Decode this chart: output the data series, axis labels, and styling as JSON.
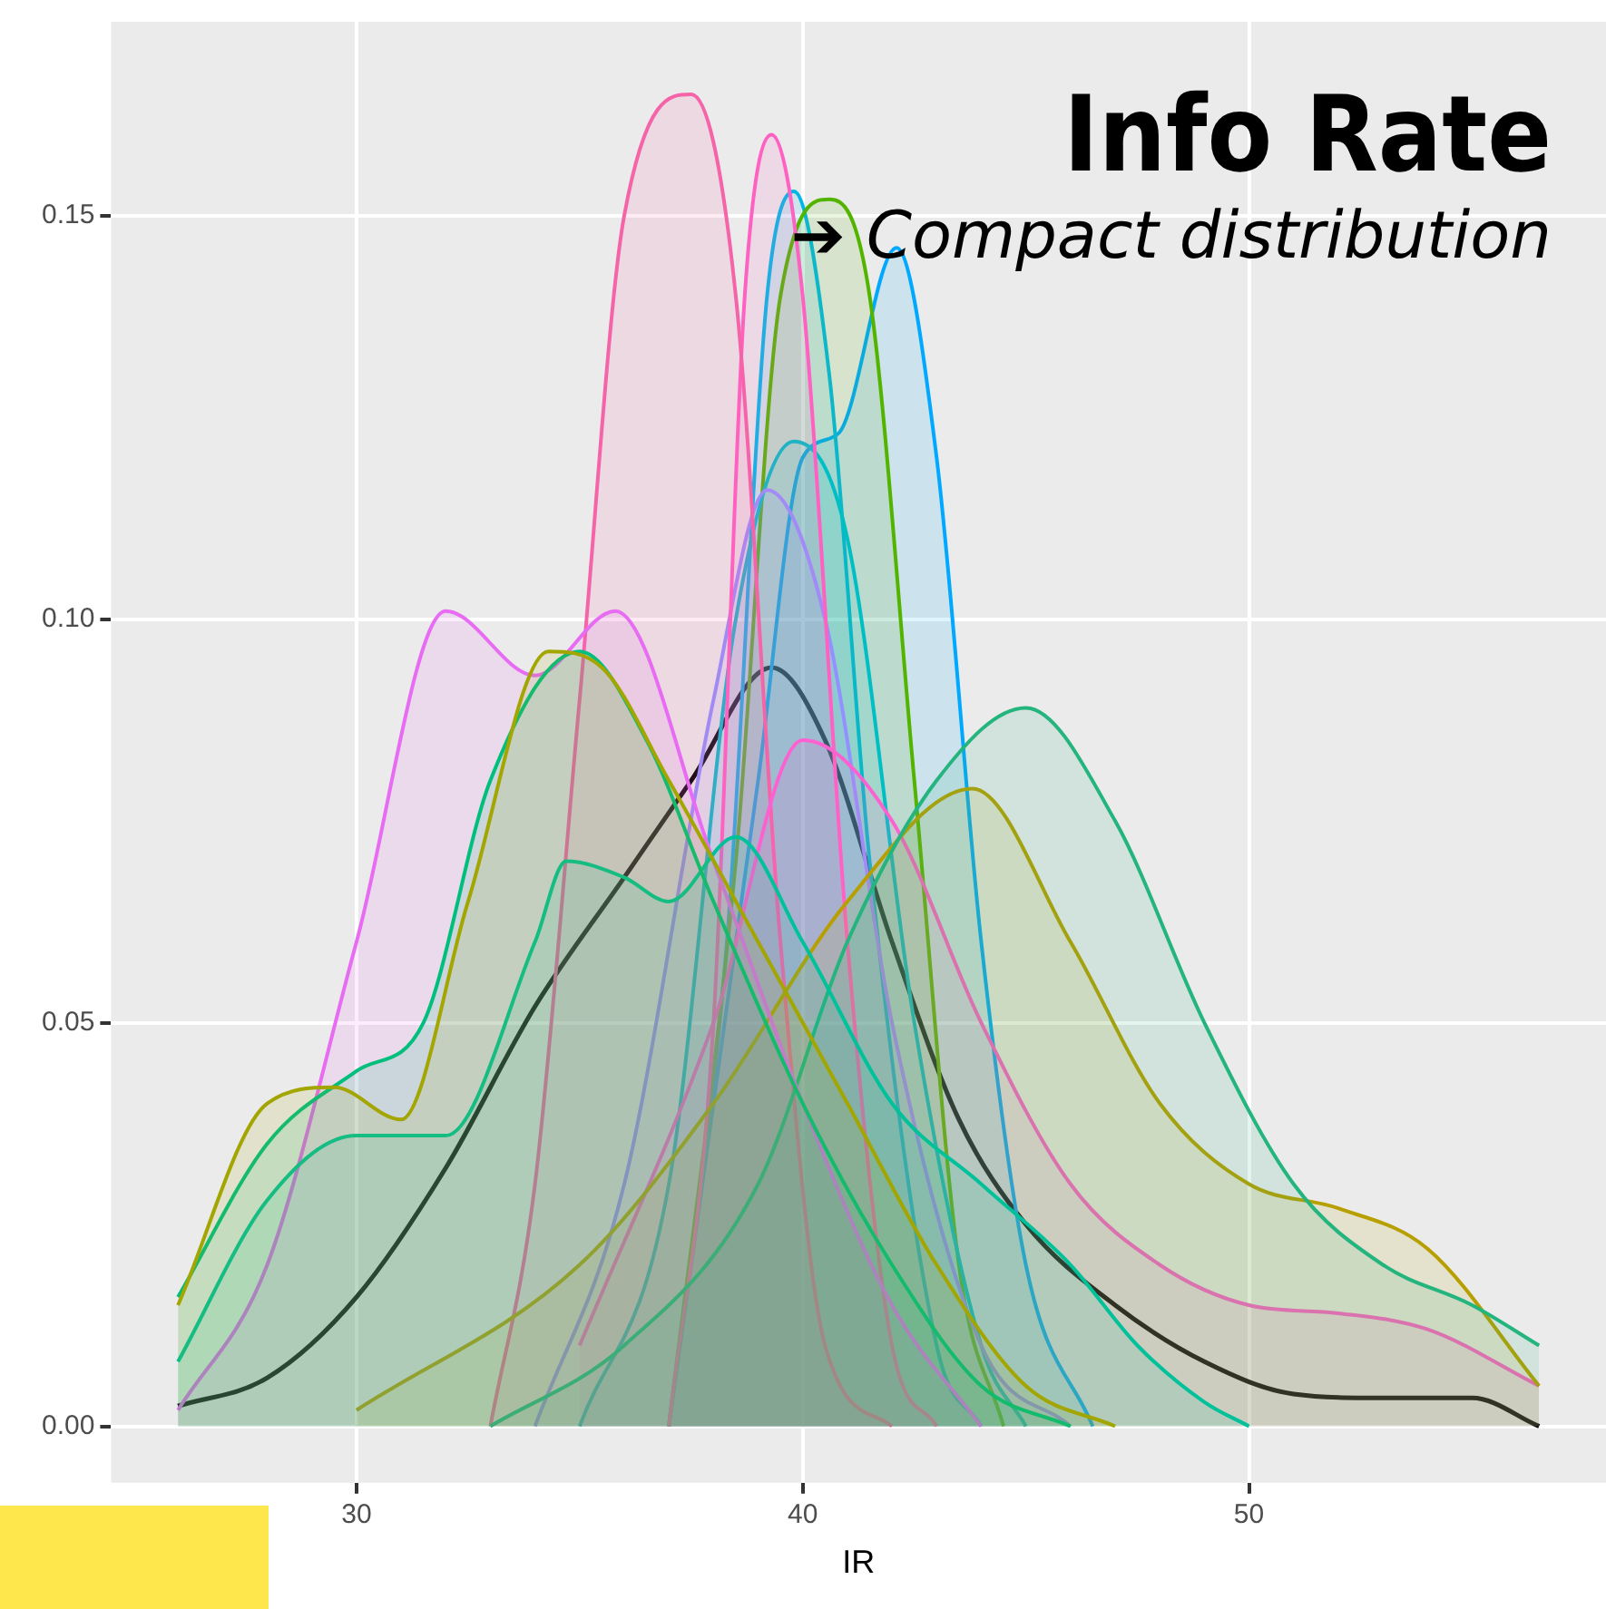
{
  "chart_data": {
    "type": "area",
    "title": "Info Rate",
    "xlabel": "IR",
    "annotations": [
      "➔ Compact distribution"
    ],
    "xlim": [
      24.5,
      58
    ],
    "ylim": [
      -0.007,
      0.174
    ],
    "xticks": [
      30,
      40,
      50
    ],
    "yticks": [
      {
        "value": 0,
        "label": "0.00"
      },
      {
        "value": 0.05,
        "label": "0.05"
      },
      {
        "value": 0.1,
        "label": "0.10"
      },
      {
        "value": 0.15,
        "label": "0.15"
      }
    ],
    "grid": true,
    "legend": false,
    "series": [
      {
        "color": "#a3a500",
        "x": [
          26,
          28,
          29.5,
          31,
          32.5,
          34.3,
          35.5,
          37,
          39,
          41,
          43,
          45,
          47
        ],
        "values": [
          0.015,
          0.04,
          0.042,
          0.038,
          0.065,
          0.096,
          0.094,
          0.08,
          0.06,
          0.04,
          0.02,
          0.005,
          0
        ]
      },
      {
        "color": "#00bf7d",
        "x": [
          26,
          28,
          30,
          31.5,
          33,
          35,
          36.5,
          38,
          40,
          42,
          44,
          46
        ],
        "values": [
          0.016,
          0.035,
          0.044,
          0.05,
          0.08,
          0.096,
          0.085,
          0.065,
          0.04,
          0.02,
          0.005,
          0
        ]
      },
      {
        "color": "#00c19a",
        "x": [
          26,
          28,
          30,
          32,
          34,
          34.7,
          36,
          37,
          38.5,
          40,
          42,
          44,
          46,
          47.5,
          49,
          50
        ],
        "values": [
          0.008,
          0.028,
          0.036,
          0.036,
          0.06,
          0.07,
          0.068,
          0.065,
          0.073,
          0.06,
          0.04,
          0.03,
          0.02,
          0.01,
          0.003,
          0
        ]
      },
      {
        "color": "#e76bf3",
        "x": [
          26,
          28,
          30,
          32,
          34,
          35.8,
          38,
          40,
          42,
          44
        ],
        "values": [
          0.002,
          0.02,
          0.06,
          0.101,
          0.093,
          0.101,
          0.07,
          0.04,
          0.015,
          0
        ]
      },
      {
        "color": "#24b47e",
        "x": [
          33,
          36,
          39,
          41,
          43,
          45,
          47,
          49,
          51,
          53,
          55,
          56.5
        ],
        "values": [
          0,
          0.01,
          0.03,
          0.06,
          0.08,
          0.089,
          0.075,
          0.05,
          0.03,
          0.02,
          0.015,
          0.01
        ]
      },
      {
        "color": "#b79f00",
        "x": [
          30,
          35,
          38,
          41,
          43.8,
          46,
          48,
          50,
          52,
          54,
          56.5
        ],
        "values": [
          0.002,
          0.02,
          0.04,
          0.065,
          0.079,
          0.06,
          0.04,
          0.03,
          0.027,
          0.022,
          0.005
        ]
      },
      {
        "color": "#fd61d1",
        "x": [
          35,
          38,
          40,
          42,
          44,
          46,
          48,
          50,
          52,
          54,
          56.5
        ],
        "values": [
          0.01,
          0.05,
          0.085,
          0.075,
          0.05,
          0.03,
          0.02,
          0.015,
          0.014,
          0.012,
          0.005
        ]
      },
      {
        "color": "#f564a8",
        "x": [
          33,
          34,
          35,
          36,
          37.5,
          38.5,
          39.5,
          40.5,
          42
        ],
        "values": [
          0,
          0.03,
          0.09,
          0.15,
          0.165,
          0.14,
          0.06,
          0.01,
          0
        ]
      },
      {
        "color": "#ff61c3",
        "x": [
          37,
          38,
          38.7,
          39.3,
          40,
          41,
          42,
          43
        ],
        "values": [
          0,
          0.05,
          0.14,
          0.16,
          0.14,
          0.06,
          0.01,
          0
        ]
      },
      {
        "color": "#9590ff",
        "x": [
          34,
          36,
          38,
          39.2,
          40.5,
          42,
          44,
          46
        ],
        "values": [
          0,
          0.03,
          0.09,
          0.116,
          0.1,
          0.05,
          0.01,
          0
        ]
      },
      {
        "color": "#00bfc4",
        "x": [
          35,
          37,
          38.5,
          39.8,
          41,
          42.5,
          44,
          45
        ],
        "values": [
          0,
          0.03,
          0.1,
          0.122,
          0.11,
          0.05,
          0.01,
          0
        ]
      },
      {
        "color": "#53b400",
        "x": [
          37,
          38.5,
          39.5,
          40.6,
          41.5,
          42.5,
          43.5,
          44.5
        ],
        "values": [
          0,
          0.07,
          0.14,
          0.152,
          0.14,
          0.08,
          0.02,
          0
        ]
      },
      {
        "color": "#00b8e7",
        "x": [
          37,
          38.3,
          39.2,
          39.8,
          40.6,
          41.5,
          43,
          44
        ],
        "values": [
          0,
          0.06,
          0.14,
          0.153,
          0.13,
          0.07,
          0.01,
          0
        ]
      },
      {
        "color": "#00a9ff",
        "x": [
          37,
          39,
          40,
          40.8,
          42.1,
          43,
          44,
          45,
          46.5
        ],
        "values": [
          0,
          0.08,
          0.12,
          0.123,
          0.146,
          0.12,
          0.06,
          0.02,
          0
        ]
      },
      {
        "type": "line",
        "color": "#000000",
        "x": [
          26,
          28,
          30,
          32,
          34,
          36,
          37.5,
          39.3,
          40.5,
          42,
          43.5,
          45,
          47,
          49,
          51,
          53,
          55,
          56.5
        ],
        "values": [
          0.0025,
          0.006,
          0.016,
          0.032,
          0.052,
          0.068,
          0.08,
          0.094,
          0.085,
          0.06,
          0.038,
          0.025,
          0.015,
          0.008,
          0.004,
          0.0035,
          0.0035,
          0
        ]
      }
    ]
  }
}
